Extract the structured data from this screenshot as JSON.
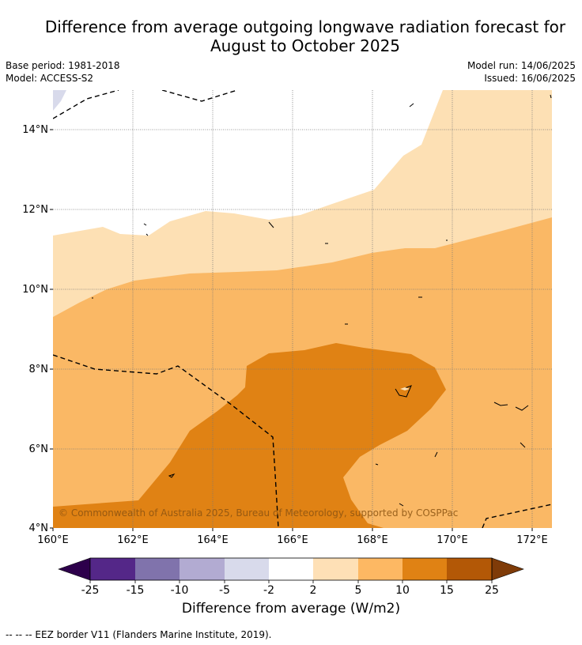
{
  "header": {
    "title_line1": "Difference from average outgoing longwave radiation forecast for",
    "title_line2": "August to October 2025",
    "base_period": "Base period: 1981-2018",
    "model": "Model: ACCESS-S2",
    "model_run": "Model run: 14/06/2025",
    "issued": "Issued: 16/06/2025"
  },
  "map": {
    "x_ticks": [
      "160°E",
      "162°E",
      "164°E",
      "166°E",
      "168°E",
      "170°E",
      "172°E"
    ],
    "y_ticks": [
      "4°N",
      "6°N",
      "8°N",
      "10°N",
      "12°N",
      "14°N"
    ],
    "copyright": "© Commonwealth of Australia 2025, Bureau of Meteorology, supported by COSPPac",
    "colors": {
      "band_2_5": "#fde0b4",
      "band_5_10": "#fab865",
      "band_10_15": "#e08214",
      "band_neg5_neg2": "#d8daeb"
    }
  },
  "colorbar": {
    "ticks": [
      "-25",
      "-15",
      "-10",
      "-5",
      "-2",
      "2",
      "5",
      "10",
      "15",
      "25"
    ],
    "colors": [
      "#2d004b",
      "#542788",
      "#8073ac",
      "#b2abd2",
      "#d8daeb",
      "#ffffff",
      "#fee0b6",
      "#fdb863",
      "#e08214",
      "#b35806",
      "#7f3b08"
    ],
    "title": "Difference from average (W/m2)"
  },
  "footnote": "--  --  -- EEZ border V11 (Flanders Marine Institute, 2019)."
}
